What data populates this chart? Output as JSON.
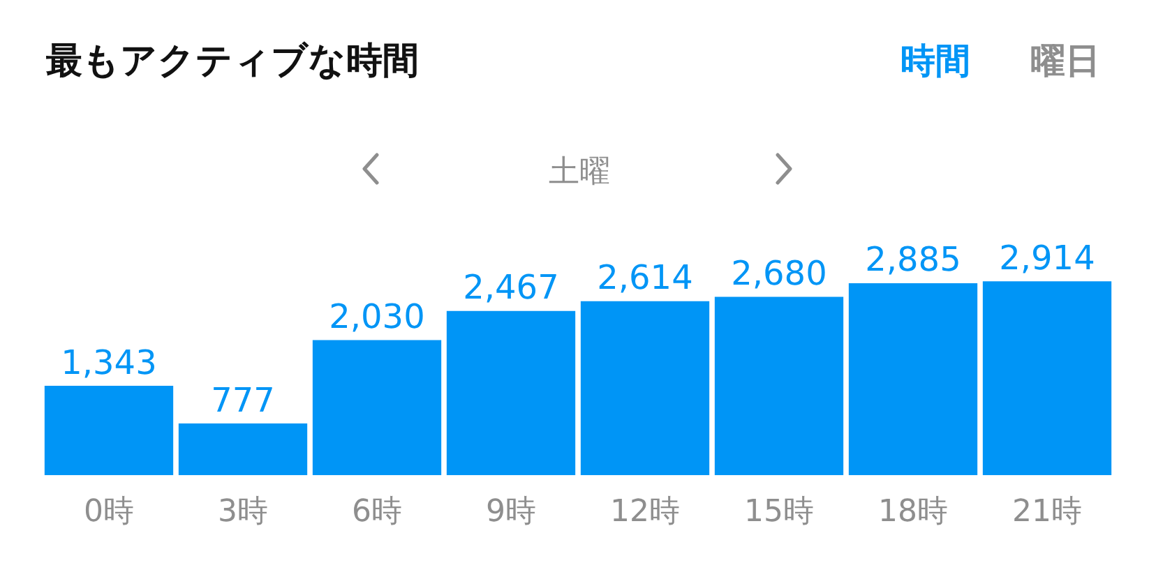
{
  "chart_data": {
    "type": "bar",
    "title": "最もアクティブな時間",
    "subtitle": "土曜",
    "annotations": [
      "時間",
      "曜日"
    ],
    "categories": [
      "0時",
      "3時",
      "6時",
      "9時",
      "12時",
      "15時",
      "18時",
      "21時"
    ],
    "values": [
      1343,
      777,
      2030,
      2467,
      2614,
      2680,
      2885,
      2914
    ],
    "value_labels": [
      "1,343",
      "777",
      "2,030",
      "2,467",
      "2,614",
      "2,680",
      "2,885",
      "2,914"
    ],
    "color": "#0095f6",
    "tick_labels": "x"
  }
}
